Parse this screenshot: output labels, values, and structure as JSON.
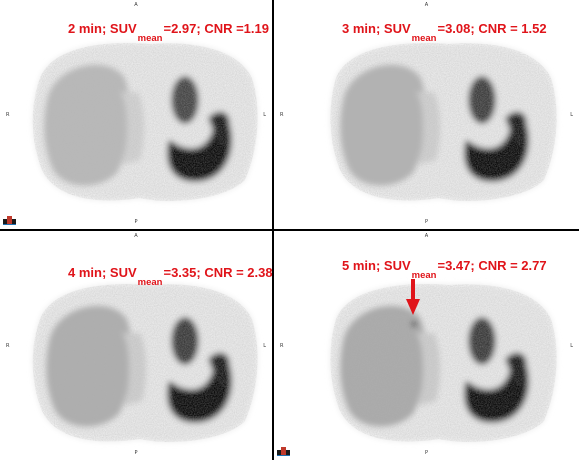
{
  "figure": {
    "panels": [
      {
        "id": "panel-1",
        "time": "2 min",
        "suv_label": "SUV",
        "suv_sub": "mean",
        "suv_rest": "=2.97; CNR =1.19",
        "arrow": false
      },
      {
        "id": "panel-2",
        "time": "3 min",
        "suv_label": "SUV",
        "suv_sub": "mean",
        "suv_rest": "=3.08; CNR = 1.52",
        "arrow": false
      },
      {
        "id": "panel-3",
        "time": "4 min",
        "suv_label": "SUV",
        "suv_sub": "mean",
        "suv_rest": "=3.35; CNR = 2.38",
        "arrow": false
      },
      {
        "id": "panel-4",
        "time": "5 min",
        "suv_label": "SUV",
        "suv_sub": "mean",
        "suv_rest": "=3.47; CNR = 2.77",
        "arrow": true
      }
    ],
    "orientation": {
      "top": "A",
      "bottom": "P",
      "left": "R",
      "right": "L"
    },
    "colors": {
      "caption": "#e0141a",
      "arrow": "#e0141a",
      "divider": "#000000"
    }
  }
}
